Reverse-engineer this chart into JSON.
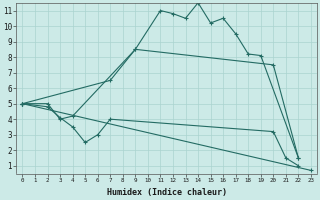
{
  "xlabel": "Humidex (Indice chaleur)",
  "ylabel": "",
  "bg_color": "#cceae7",
  "grid_color": "#b0d8d4",
  "line_color": "#236b63",
  "xlim": [
    -0.5,
    23.5
  ],
  "ylim": [
    0.5,
    11.5
  ],
  "xticks": [
    0,
    1,
    2,
    3,
    4,
    5,
    6,
    7,
    8,
    9,
    10,
    11,
    12,
    13,
    14,
    15,
    16,
    17,
    18,
    19,
    20,
    21,
    22,
    23
  ],
  "yticks": [
    1,
    2,
    3,
    4,
    5,
    6,
    7,
    8,
    9,
    10,
    11
  ],
  "series": [
    {
      "x": [
        0,
        2,
        3,
        4,
        9,
        11,
        12,
        13,
        14,
        15,
        16,
        17,
        18,
        19,
        22
      ],
      "y": [
        5,
        5,
        4,
        4.2,
        8.5,
        11,
        10.8,
        10.5,
        11.5,
        10.2,
        10.5,
        9.5,
        8.2,
        8.1,
        1.5
      ]
    },
    {
      "x": [
        0,
        7,
        9,
        20,
        22
      ],
      "y": [
        5,
        6.5,
        8.5,
        7.5,
        1.5
      ]
    },
    {
      "x": [
        0,
        2,
        3,
        4,
        5,
        6,
        7,
        20,
        21,
        22
      ],
      "y": [
        5,
        4.8,
        4.1,
        3.5,
        2.5,
        3.0,
        4.0,
        3.2,
        1.5,
        1.0
      ]
    },
    {
      "x": [
        0,
        23
      ],
      "y": [
        5,
        0.7
      ]
    }
  ]
}
